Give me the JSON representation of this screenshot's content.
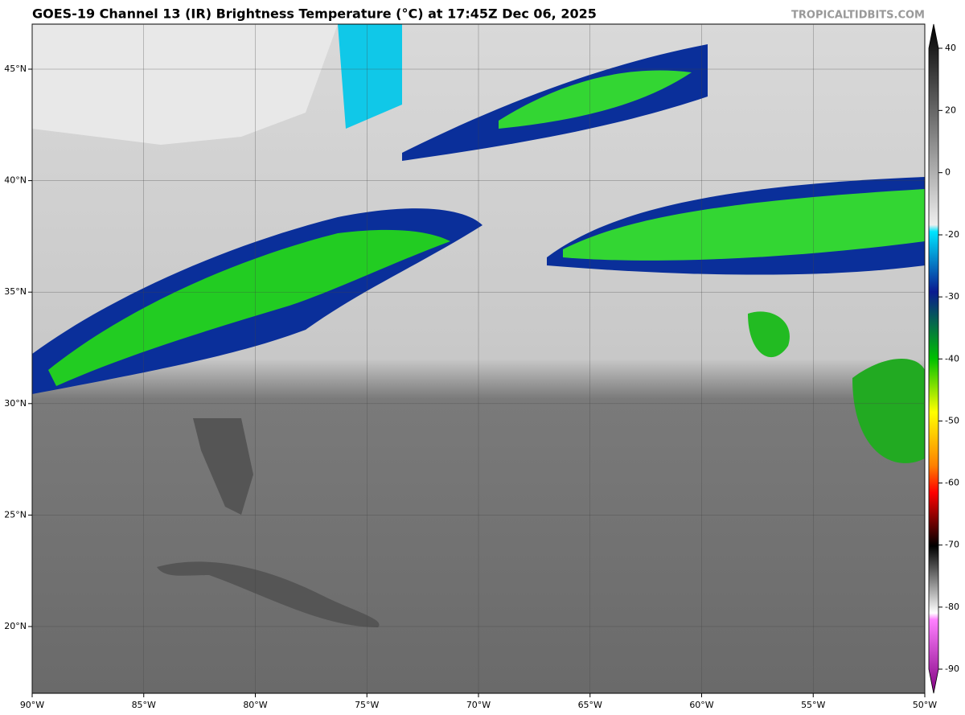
{
  "header": {
    "title": "GOES-19 Channel 13 (IR) Brightness Temperature (°C) at 17:45Z Dec 06, 2025",
    "watermark": "TROPICALTIDBITS.COM"
  },
  "map": {
    "lon_ticks": [
      {
        "value": -90,
        "label": "90°W"
      },
      {
        "value": -85,
        "label": "85°W"
      },
      {
        "value": -80,
        "label": "80°W"
      },
      {
        "value": -75,
        "label": "75°W"
      },
      {
        "value": -70,
        "label": "70°W"
      },
      {
        "value": -65,
        "label": "65°W"
      },
      {
        "value": -60,
        "label": "60°W"
      },
      {
        "value": -55,
        "label": "55°W"
      },
      {
        "value": -50,
        "label": "50°W"
      }
    ],
    "lat_ticks": [
      {
        "value": 45,
        "label": "45°N"
      },
      {
        "value": 40,
        "label": "40°N"
      },
      {
        "value": 35,
        "label": "35°N"
      },
      {
        "value": 30,
        "label": "30°N"
      },
      {
        "value": 25,
        "label": "25°N"
      },
      {
        "value": 20,
        "label": "20°N"
      }
    ]
  },
  "colorbar": {
    "ticks": [
      40,
      20,
      0,
      -20,
      -30,
      -40,
      -50,
      -60,
      -70,
      -80,
      -90
    ]
  }
}
